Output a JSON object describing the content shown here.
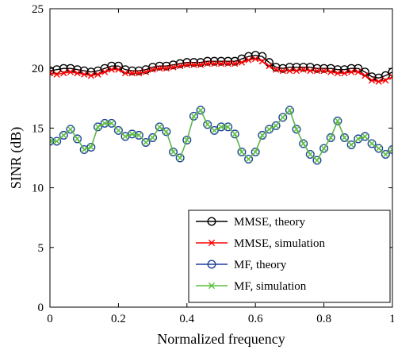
{
  "chart_data": {
    "type": "line",
    "xlabel": "Normalized frequency",
    "ylabel": "SINR (dB)",
    "xlim": [
      0,
      1
    ],
    "ylim": [
      0,
      25
    ],
    "xticks": [
      0,
      0.2,
      0.4,
      0.6,
      0.8,
      1
    ],
    "xtick_labels": [
      "0",
      "0.2",
      "0.4",
      "0.6",
      "0.8",
      "1"
    ],
    "yticks": [
      0,
      5,
      10,
      15,
      20,
      25
    ],
    "ytick_labels": [
      "0",
      "5",
      "10",
      "15",
      "20",
      "25"
    ],
    "grid": false,
    "legend_position": "bottom-right",
    "x": [
      0,
      0.02,
      0.04,
      0.06,
      0.08,
      0.1,
      0.12,
      0.14,
      0.16,
      0.18,
      0.2,
      0.22,
      0.24,
      0.26,
      0.28,
      0.3,
      0.32,
      0.34,
      0.36,
      0.38,
      0.4,
      0.42,
      0.44,
      0.46,
      0.48,
      0.5,
      0.52,
      0.54,
      0.56,
      0.58,
      0.6,
      0.62,
      0.64,
      0.66,
      0.68,
      0.7,
      0.72,
      0.74,
      0.76,
      0.78,
      0.8,
      0.82,
      0.84,
      0.86,
      0.88,
      0.9,
      0.92,
      0.94,
      0.96,
      0.98,
      1.0
    ],
    "series": [
      {
        "name": "MMSE, theory",
        "color": "#000000",
        "marker": "circle",
        "values": [
          19.8,
          19.9,
          20.0,
          20.0,
          19.9,
          19.8,
          19.7,
          19.8,
          20.0,
          20.2,
          20.2,
          19.9,
          19.8,
          19.8,
          19.9,
          20.1,
          20.2,
          20.2,
          20.3,
          20.4,
          20.5,
          20.5,
          20.5,
          20.6,
          20.6,
          20.6,
          20.6,
          20.6,
          20.8,
          21.0,
          21.1,
          21.0,
          20.5,
          20.1,
          20.0,
          20.1,
          20.1,
          20.1,
          20.1,
          20.0,
          20.0,
          20.0,
          19.9,
          19.9,
          20.0,
          20.0,
          19.7,
          19.3,
          19.2,
          19.4,
          19.7
        ]
      },
      {
        "name": "MMSE, simulation",
        "color": "#ff0000",
        "marker": "x",
        "values": [
          19.6,
          19.5,
          19.6,
          19.7,
          19.6,
          19.5,
          19.4,
          19.5,
          19.7,
          19.9,
          19.9,
          19.6,
          19.6,
          19.6,
          19.7,
          19.9,
          20.0,
          20.0,
          20.1,
          20.2,
          20.3,
          20.3,
          20.3,
          20.4,
          20.4,
          20.4,
          20.4,
          20.4,
          20.5,
          20.7,
          20.8,
          20.6,
          20.2,
          19.9,
          19.8,
          19.8,
          19.8,
          19.9,
          19.8,
          19.8,
          19.8,
          19.7,
          19.6,
          19.6,
          19.7,
          19.7,
          19.4,
          19.0,
          18.9,
          19.0,
          19.3
        ]
      },
      {
        "name": "MF, theory",
        "color": "#1f3f9f",
        "marker": "circle",
        "values": [
          13.9,
          13.9,
          14.4,
          14.9,
          14.1,
          13.2,
          13.4,
          15.1,
          15.4,
          15.4,
          14.8,
          14.3,
          14.5,
          14.4,
          13.8,
          14.2,
          15.1,
          14.7,
          13.0,
          12.5,
          14.0,
          16.0,
          16.5,
          15.3,
          14.8,
          15.1,
          15.1,
          14.5,
          13.0,
          12.4,
          13.0,
          14.4,
          14.9,
          15.2,
          15.9,
          16.5,
          14.9,
          13.7,
          12.8,
          12.3,
          13.3,
          14.2,
          15.6,
          14.2,
          13.6,
          14.1,
          14.3,
          13.7,
          13.3,
          12.8,
          13.2
        ]
      },
      {
        "name": "MF, simulation",
        "color": "#5fbf3f",
        "marker": "x",
        "values": [
          13.9,
          13.9,
          14.4,
          14.9,
          14.1,
          13.2,
          13.4,
          15.1,
          15.4,
          15.4,
          14.8,
          14.3,
          14.5,
          14.4,
          13.8,
          14.2,
          15.1,
          14.7,
          13.0,
          12.5,
          14.0,
          16.0,
          16.5,
          15.3,
          14.8,
          15.1,
          15.1,
          14.5,
          13.0,
          12.4,
          13.0,
          14.4,
          14.9,
          15.2,
          15.9,
          16.5,
          14.9,
          13.7,
          12.8,
          12.3,
          13.3,
          14.2,
          15.6,
          14.2,
          13.6,
          14.1,
          14.3,
          13.7,
          13.3,
          12.8,
          13.2
        ]
      }
    ]
  }
}
